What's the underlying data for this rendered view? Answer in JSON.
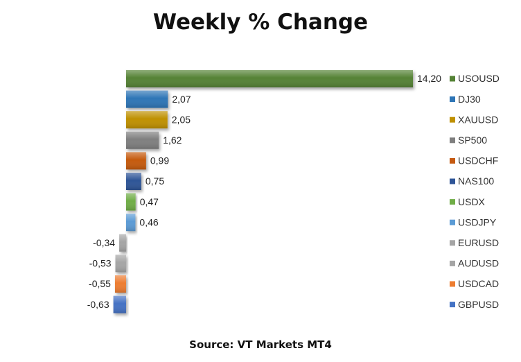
{
  "chart_data": {
    "type": "bar",
    "orientation": "horizontal",
    "title": "Weekly % Change",
    "source": "Source: VT Markets MT4",
    "categories": [
      "USOUSD",
      "DJ30",
      "XAUUSD",
      "SP500",
      "USDCHF",
      "NAS100",
      "USDX",
      "USDJPY",
      "EURUSD",
      "AUDUSD",
      "USDCAD",
      "GBPUSD"
    ],
    "values": [
      14.2,
      2.07,
      2.05,
      1.62,
      0.99,
      0.75,
      0.47,
      0.46,
      -0.34,
      -0.53,
      -0.55,
      -0.63
    ],
    "value_labels": [
      "14,20",
      "2,07",
      "2,05",
      "1,62",
      "0,99",
      "0,75",
      "0,47",
      "0,46",
      "-0,34",
      "-0,53",
      "-0,55",
      "-0,63"
    ],
    "colors": [
      "#548235",
      "#2e75b6",
      "#bf9000",
      "#7f7f7f",
      "#c55a11",
      "#2f5597",
      "#70ad47",
      "#5b9bd5",
      "#a5a5a5",
      "#a5a5a5",
      "#ed7d31",
      "#4472c4"
    ],
    "legend_position": "right",
    "grid": false
  }
}
